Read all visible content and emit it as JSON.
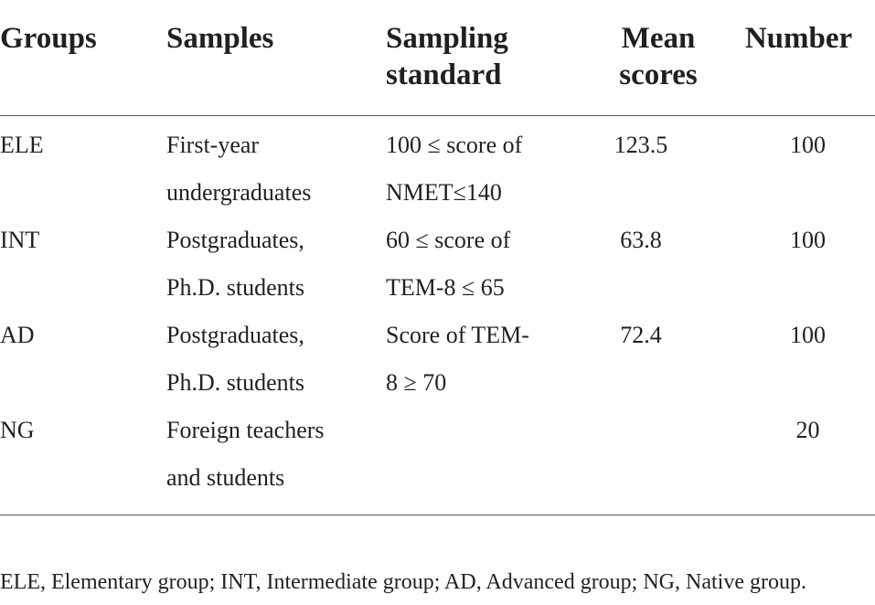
{
  "table": {
    "headers": {
      "groups": "Groups",
      "samples": "Samples",
      "sampling_standard_line1": "Sampling",
      "sampling_standard_line2": "standard",
      "mean_scores_line1": "Mean",
      "mean_scores_line2": "scores",
      "number": "Number"
    },
    "rows": [
      {
        "group": "ELE",
        "samples_line1": "First-year",
        "samples_line2": "undergraduates",
        "standard_line1": "100 ≤ score of",
        "standard_line2": "NMET≤140",
        "mean": "123.5",
        "number": "100"
      },
      {
        "group": "INT",
        "samples_line1": "Postgraduates,",
        "samples_line2": "Ph.D. students",
        "standard_line1": "60 ≤ score of",
        "standard_line2": "TEM-8 ≤ 65",
        "mean": "63.8",
        "number": "100"
      },
      {
        "group": "AD",
        "samples_line1": "Postgraduates,",
        "samples_line2": "Ph.D. students",
        "standard_line1": "Score of TEM-",
        "standard_line2": "8 ≥ 70",
        "mean": "72.4",
        "number": "100"
      },
      {
        "group": "NG",
        "samples_line1": "Foreign teachers",
        "samples_line2": "and students",
        "standard_line1": "",
        "standard_line2": "",
        "mean": "",
        "number": "20"
      }
    ]
  },
  "footnote": "ELE, Elementary group; INT, Intermediate group; AD, Advanced group; NG, Native group."
}
